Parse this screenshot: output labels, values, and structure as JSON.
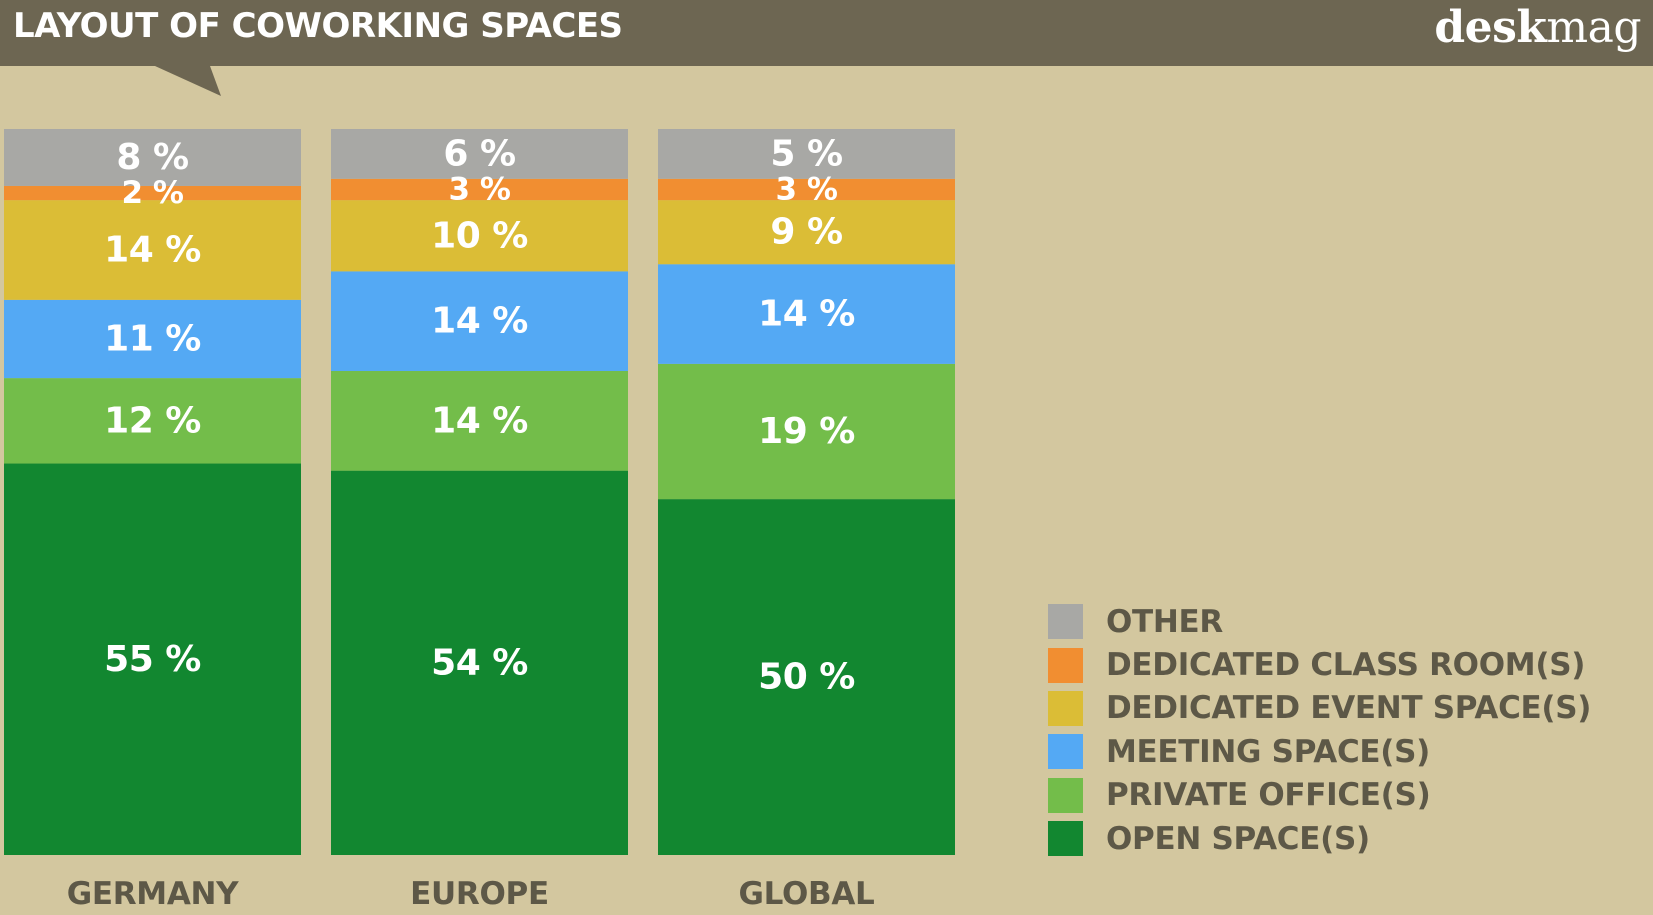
{
  "header": {
    "title": "LAYOUT OF COWORKING SPACES",
    "logo_bold": "desk",
    "logo_regular": "mag"
  },
  "chart_data": {
    "type": "bar",
    "stacked": true,
    "title": "LAYOUT OF COWORKING SPACES",
    "categories": [
      "GERMANY",
      "EUROPE",
      "GLOBAL"
    ],
    "series": [
      {
        "name": "OPEN SPACE(S)",
        "color": "#128730",
        "values": [
          55,
          54,
          50
        ]
      },
      {
        "name": "PRIVATE OFFICE(S)",
        "color": "#73bd4a",
        "values": [
          12,
          14,
          19
        ]
      },
      {
        "name": "MEETING SPACE(S)",
        "color": "#54a9f4",
        "values": [
          11,
          14,
          14
        ]
      },
      {
        "name": "DEDICATED EVENT SPACE(S)",
        "color": "#dbbd36",
        "values": [
          14,
          10,
          9
        ]
      },
      {
        "name": "DEDICATED CLASS ROOM(S)",
        "color": "#f18e31",
        "values": [
          2,
          3,
          3
        ]
      },
      {
        "name": "OTHER",
        "color": "#a8a8a5",
        "values": [
          8,
          6,
          5
        ]
      }
    ],
    "value_suffix": " %",
    "ylim": [
      0,
      102
    ],
    "grid": false,
    "legend_position": "bottom-right",
    "legend_order": [
      "OTHER",
      "DEDICATED CLASS ROOM(S)",
      "DEDICATED EVENT SPACE(S)",
      "MEETING SPACE(S)",
      "PRIVATE OFFICE(S)",
      "OPEN SPACE(S)"
    ]
  },
  "colors": {
    "background": "#d3c79f",
    "header": "#6d6652",
    "category_label": "#5d5847",
    "value_label": "#ffffff"
  }
}
